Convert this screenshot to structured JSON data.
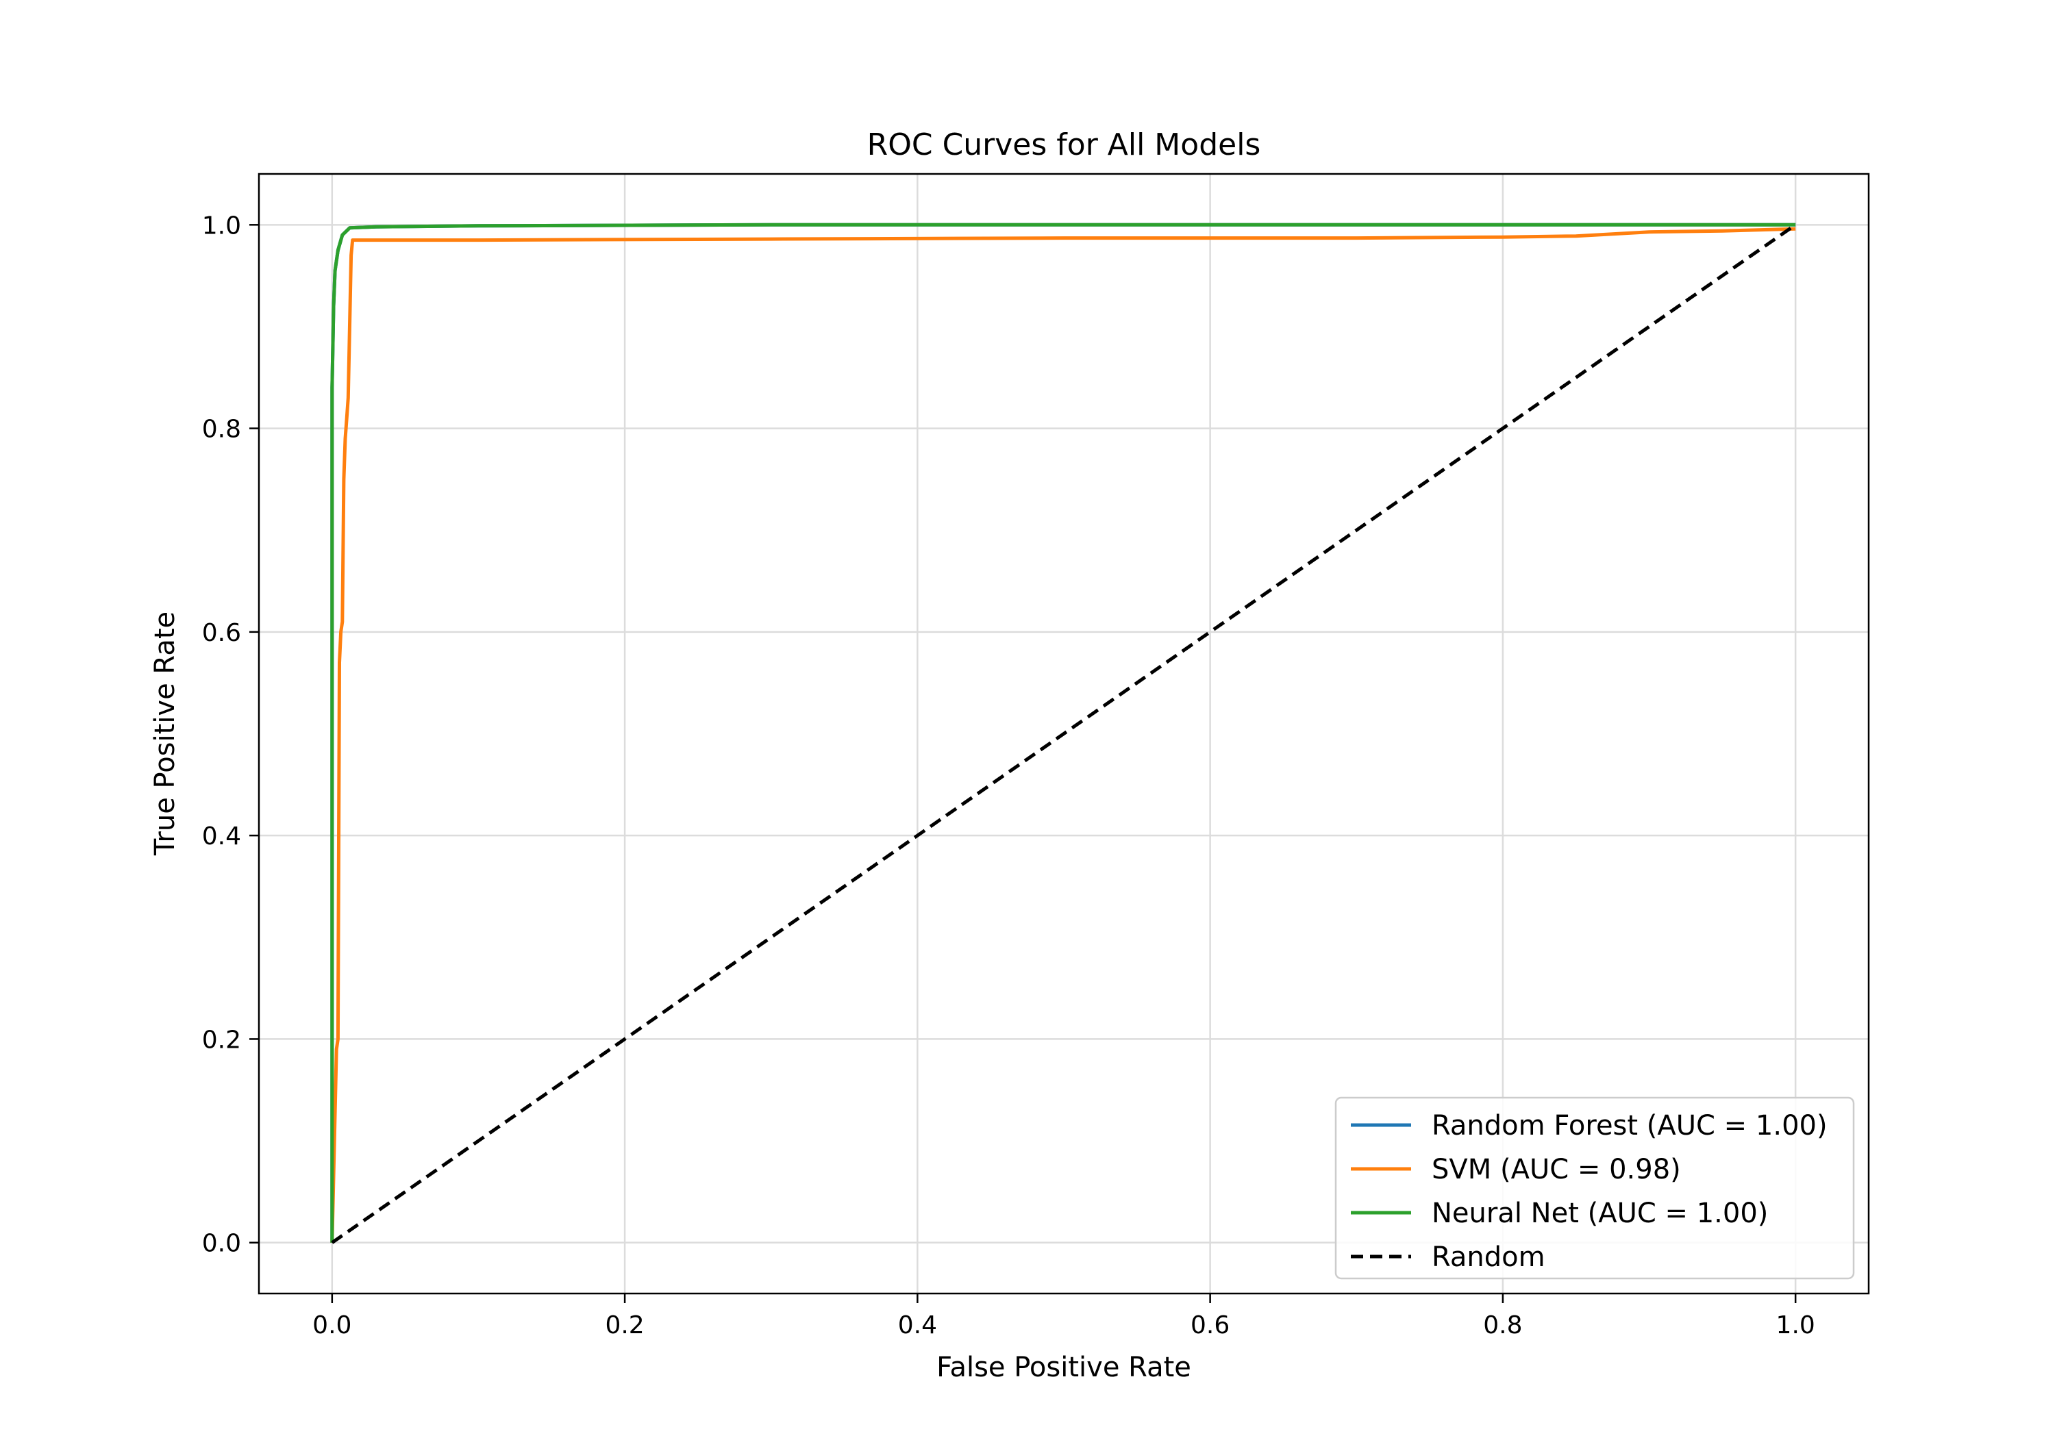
{
  "chart_data": {
    "type": "line",
    "title": "ROC Curves for All Models",
    "xlabel": "False Positive Rate",
    "ylabel": "True Positive Rate",
    "xlim": [
      -0.05,
      1.05
    ],
    "ylim": [
      -0.05,
      1.05
    ],
    "xticks": [
      0.0,
      0.2,
      0.4,
      0.6,
      0.8,
      1.0
    ],
    "xtick_labels": [
      "0.0",
      "0.2",
      "0.4",
      "0.6",
      "0.8",
      "1.0"
    ],
    "yticks": [
      0.0,
      0.2,
      0.4,
      0.6,
      0.8,
      1.0
    ],
    "ytick_labels": [
      "0.0",
      "0.2",
      "0.4",
      "0.6",
      "0.8",
      "1.0"
    ],
    "grid": true,
    "legend_position": "lower-right",
    "series": [
      {
        "name": "Random Forest (AUC = 1.00)",
        "color": "#1f77b4",
        "dash": "solid",
        "x": [
          0.0,
          0.0,
          0.001,
          0.002,
          0.004,
          0.007,
          0.012,
          0.03,
          0.1,
          0.3,
          1.0
        ],
        "y": [
          0.0,
          0.84,
          0.92,
          0.955,
          0.975,
          0.99,
          0.997,
          0.998,
          0.999,
          1.0,
          1.0
        ]
      },
      {
        "name": "SVM (AUC = 0.98)",
        "color": "#ff7f0e",
        "dash": "solid",
        "x": [
          0.0,
          0.003,
          0.004,
          0.005,
          0.006,
          0.007,
          0.008,
          0.009,
          0.01,
          0.011,
          0.013,
          0.014,
          0.1,
          0.3,
          0.5,
          0.7,
          0.8,
          0.85,
          0.9,
          0.95,
          1.0
        ],
        "y": [
          0.0,
          0.19,
          0.2,
          0.57,
          0.6,
          0.61,
          0.75,
          0.79,
          0.81,
          0.83,
          0.97,
          0.985,
          0.985,
          0.986,
          0.987,
          0.987,
          0.988,
          0.989,
          0.993,
          0.994,
          0.996
        ]
      },
      {
        "name": "Neural Net (AUC = 1.00)",
        "color": "#2ca02c",
        "dash": "solid",
        "x": [
          0.0,
          0.0,
          0.001,
          0.002,
          0.004,
          0.007,
          0.012,
          0.03,
          0.1,
          0.3,
          1.0
        ],
        "y": [
          0.0,
          0.84,
          0.92,
          0.955,
          0.975,
          0.99,
          0.997,
          0.998,
          0.999,
          1.0,
          1.0
        ]
      },
      {
        "name": "Random",
        "color": "#000000",
        "dash": "dashed",
        "x": [
          0.0,
          1.0
        ],
        "y": [
          0.0,
          1.0
        ]
      }
    ]
  }
}
